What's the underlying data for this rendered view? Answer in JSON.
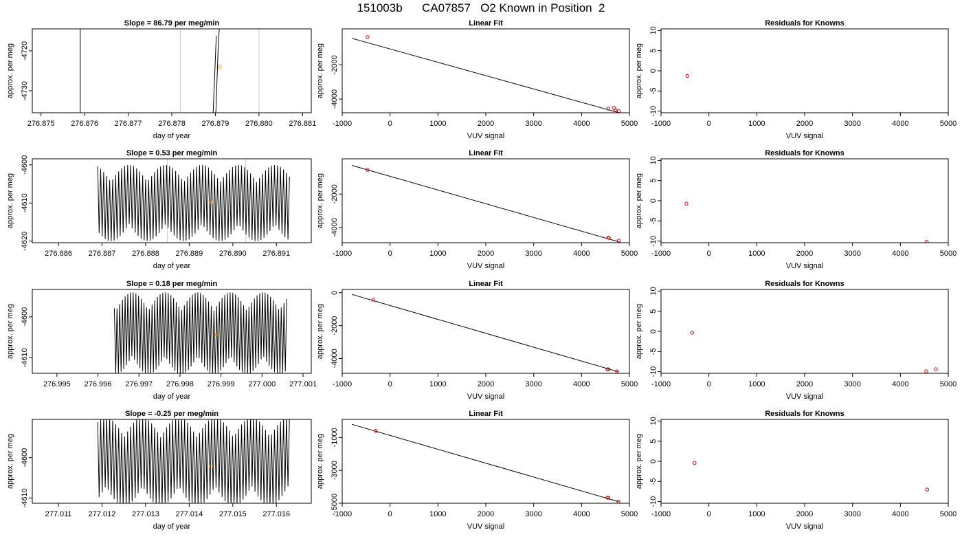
{
  "page_title": "151003b      CA07857   O2 Known in Position  2",
  "colors": {
    "trace": "#000000",
    "grid": "#c8c8c8",
    "known_point": "#cc0000",
    "mean_point": "#ffa500"
  },
  "chart_data": [
    {
      "type": "line",
      "panel": "time-series",
      "row": 1,
      "title": "Slope =  86.79  per meg/min",
      "xlabel": "day of year",
      "ylabel": "approx. per meg",
      "xlim": [
        276.8748,
        276.8812
      ],
      "ylim": [
        -4735.5,
        -4714.5
      ],
      "x_ticks": [
        "276.875",
        "276.876",
        "276.877",
        "276.878",
        "276.879",
        "276.880",
        "276.881"
      ],
      "y_ticks": [
        "-4730",
        "-4720"
      ],
      "trace_window": [
        276.8759,
        276.8791
      ],
      "oscillation": {
        "center": -4705,
        "amplitude": 80,
        "cycles": 1
      },
      "grid_lines_x": [
        276.8782,
        276.88
      ],
      "mean_point": {
        "x": 276.8791,
        "y": -4724
      }
    },
    {
      "type": "scatter",
      "panel": "linear-fit",
      "row": 1,
      "title": "Linear Fit",
      "xlabel": "VUV signal",
      "ylabel": "approx. per meg",
      "xlim": [
        -1000,
        5000
      ],
      "ylim": [
        -4800,
        100
      ],
      "x_ticks": [
        "-1000",
        "0",
        "1000",
        "2000",
        "3000",
        "4000",
        "5000"
      ],
      "y_ticks": [
        "-4000",
        "-2000"
      ],
      "fit_line": [
        [
          -800,
          -450
        ],
        [
          4770,
          -4790
        ]
      ],
      "points": [
        [
          -470,
          -380
        ],
        [
          4560,
          -4560
        ],
        [
          4680,
          -4520
        ],
        [
          4710,
          -4640
        ],
        [
          4780,
          -4700
        ]
      ]
    },
    {
      "type": "scatter",
      "panel": "residuals",
      "row": 1,
      "title": "Residuals for Knowns",
      "xlabel": "VUV signal",
      "ylabel": "approx. per meg",
      "xlim": [
        -1000,
        5000
      ],
      "ylim": [
        -10.4,
        10.4
      ],
      "x_ticks": [
        "-1000",
        "0",
        "1000",
        "2000",
        "3000",
        "4000",
        "5000"
      ],
      "y_ticks": [
        "-10",
        "-5",
        "0",
        "5",
        "10"
      ],
      "points": [
        [
          -450,
          -1.3
        ]
      ]
    },
    {
      "type": "line",
      "panel": "time-series",
      "row": 2,
      "title": "Slope =  0.53  per meg/min",
      "xlabel": "day of year",
      "ylabel": "approx. per meg",
      "xlim": [
        276.8854,
        276.8918
      ],
      "ylim": [
        -4620.4,
        -4598.4
      ],
      "x_ticks": [
        "276.886",
        "276.887",
        "276.888",
        "276.889",
        "276.890",
        "276.891"
      ],
      "y_ticks": [
        "-4620",
        "-4610",
        "-4600"
      ],
      "trace_window": [
        276.8869,
        276.8913
      ],
      "oscillation": {
        "center": -4610,
        "amplitude": 10,
        "cycles": 64
      },
      "grid_lines_x": [
        276.8885,
        276.8903
      ],
      "mean_point": {
        "x": 276.8895,
        "y": -4609.8
      }
    },
    {
      "type": "scatter",
      "panel": "linear-fit",
      "row": 2,
      "title": "Linear Fit",
      "xlabel": "VUV signal",
      "ylabel": "approx. per meg",
      "xlim": [
        -1000,
        5000
      ],
      "ylim": [
        -4900,
        100
      ],
      "x_ticks": [
        "-1000",
        "0",
        "1000",
        "2000",
        "3000",
        "4000",
        "5000"
      ],
      "y_ticks": [
        "-4000",
        "-2000"
      ],
      "fit_line": [
        [
          -800,
          -290
        ],
        [
          4780,
          -4850
        ]
      ],
      "points": [
        [
          -470,
          -560
        ],
        [
          4560,
          -4600
        ],
        [
          4570,
          -4610
        ],
        [
          4780,
          -4780
        ]
      ]
    },
    {
      "type": "scatter",
      "panel": "residuals",
      "row": 2,
      "title": "Residuals for Knowns",
      "xlabel": "VUV signal",
      "ylabel": "approx. per meg",
      "xlim": [
        -1000,
        5000
      ],
      "ylim": [
        -10.4,
        10.4
      ],
      "x_ticks": [
        "-1000",
        "0",
        "1000",
        "2000",
        "3000",
        "4000",
        "5000"
      ],
      "y_ticks": [
        "-10",
        "-5",
        "0",
        "5",
        "10"
      ],
      "points": [
        [
          -470,
          -0.7
        ],
        [
          4550,
          -10.2
        ]
      ]
    },
    {
      "type": "line",
      "panel": "time-series",
      "row": 3,
      "title": "Slope =  0.18  per meg/min",
      "xlabel": "day of year",
      "ylabel": "approx. per meg",
      "xlim": [
        276.9944,
        277.0012
      ],
      "ylim": [
        -4613.8,
        -4593.3
      ],
      "x_ticks": [
        "276.995",
        "276.996",
        "276.997",
        "276.998",
        "276.999",
        "277.000",
        "277.001"
      ],
      "y_ticks": [
        "-4610",
        "-4600"
      ],
      "trace_window": [
        276.9964,
        277.0006
      ],
      "oscillation": {
        "center": -4604,
        "amplitude": 10,
        "cycles": 64
      },
      "grid_lines_x": [],
      "mean_point": {
        "x": 276.9989,
        "y": -4604.3
      }
    },
    {
      "type": "scatter",
      "panel": "linear-fit",
      "row": 3,
      "title": "Linear Fit",
      "xlabel": "VUV signal",
      "ylabel": "approx. per meg",
      "xlim": [
        -1000,
        5000
      ],
      "ylim": [
        -4900,
        200
      ],
      "x_ticks": [
        "-1000",
        "0",
        "1000",
        "2000",
        "3000",
        "4000",
        "5000"
      ],
      "y_ticks": [
        "-4000",
        "-2000",
        "0"
      ],
      "fit_line": [
        [
          -800,
          -100
        ],
        [
          4760,
          -4800
        ]
      ],
      "points": [
        [
          -350,
          -420
        ],
        [
          4540,
          -4650
        ],
        [
          4560,
          -4660
        ],
        [
          4740,
          -4780
        ]
      ]
    },
    {
      "type": "scatter",
      "panel": "residuals",
      "row": 3,
      "title": "Residuals for Knowns",
      "xlabel": "VUV signal",
      "ylabel": "approx. per meg",
      "xlim": [
        -1000,
        5000
      ],
      "ylim": [
        -10.4,
        10.4
      ],
      "x_ticks": [
        "-1000",
        "0",
        "1000",
        "2000",
        "3000",
        "4000",
        "5000"
      ],
      "y_ticks": [
        "-10",
        "-5",
        "0",
        "5",
        "10"
      ],
      "points": [
        [
          -350,
          -0.3
        ],
        [
          4540,
          -9.9
        ],
        [
          4740,
          -9.4
        ]
      ]
    },
    {
      "type": "line",
      "panel": "time-series",
      "row": 4,
      "title": "Slope =  -0.25  per meg/min",
      "xlabel": "day of year",
      "ylabel": "approx. per meg",
      "xlim": [
        277.0104,
        277.0168
      ],
      "ylim": [
        -4611.3,
        -4590.5
      ],
      "x_ticks": [
        "277.011",
        "277.012",
        "277.013",
        "277.014",
        "277.015",
        "277.016"
      ],
      "y_ticks": [
        "-4610",
        "-4600"
      ],
      "trace_window": [
        277.0119,
        277.0163
      ],
      "oscillation": {
        "center": -4601,
        "amplitude": 11,
        "cycles": 64
      },
      "grid_lines_x": [],
      "mean_point": {
        "x": 277.0145,
        "y": -4602.2
      }
    },
    {
      "type": "scatter",
      "panel": "linear-fit",
      "row": 4,
      "title": "Linear Fit",
      "xlabel": "VUV signal",
      "ylabel": "approx. per meg",
      "xlim": [
        -1000,
        5000
      ],
      "ylim": [
        -5000,
        100
      ],
      "x_ticks": [
        "-1000",
        "0",
        "1000",
        "2000",
        "3000",
        "4000",
        "5000"
      ],
      "y_ticks": [
        "-5000",
        "-3000",
        "-1000"
      ],
      "fit_line": [
        [
          -800,
          -200
        ],
        [
          4770,
          -4900
        ]
      ],
      "points": [
        [
          -300,
          -600
        ],
        [
          4540,
          -4660
        ],
        [
          4560,
          -4670
        ],
        [
          4770,
          -4900
        ]
      ]
    },
    {
      "type": "scatter",
      "panel": "residuals",
      "row": 4,
      "title": "Residuals for Knowns",
      "xlabel": "VUV signal",
      "ylabel": "approx. per meg",
      "xlim": [
        -1000,
        5000
      ],
      "ylim": [
        -10.4,
        10.4
      ],
      "x_ticks": [
        "-1000",
        "0",
        "1000",
        "2000",
        "3000",
        "4000",
        "5000"
      ],
      "y_ticks": [
        "-10",
        "-5",
        "0",
        "5",
        "10"
      ],
      "points": [
        [
          -300,
          -0.4
        ],
        [
          4560,
          -7.0
        ]
      ]
    }
  ]
}
